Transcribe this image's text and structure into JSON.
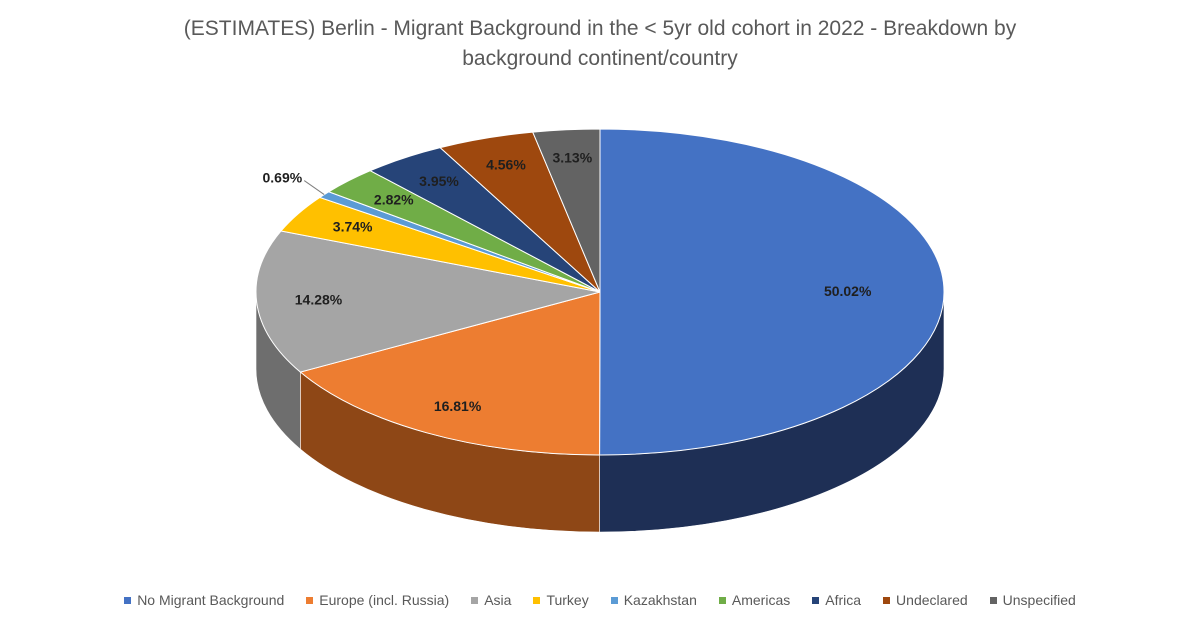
{
  "chart_data": {
    "type": "pie",
    "title": "(ESTIMATES) Berlin - Migrant Background in the < 5yr old cohort in 2022 - Breakdown by background continent/country",
    "title_lines": [
      "(ESTIMATES) Berlin - Migrant Background in the < 5yr old cohort in 2022 - Breakdown by",
      "background continent/country"
    ],
    "legend_position": "bottom",
    "slices": [
      {
        "label": "No Migrant Background",
        "value": 50.02,
        "value_label": "50.02%",
        "color": "#4472C4",
        "side": "#1E2F55"
      },
      {
        "label": "Europe (incl. Russia)",
        "value": 16.81,
        "value_label": "16.81%",
        "color": "#ED7D31",
        "side": "#8E4716"
      },
      {
        "label": "Asia",
        "value": 14.28,
        "value_label": "14.28%",
        "color": "#A5A5A5",
        "side": "#6E6E6E"
      },
      {
        "label": "Turkey",
        "value": 3.74,
        "value_label": "3.74%",
        "color": "#FFC000",
        "side": "#A67C00"
      },
      {
        "label": "Kazakhstan",
        "value": 0.69,
        "value_label": "0.69%",
        "color": "#5B9BD5",
        "side": "#2E5F8A"
      },
      {
        "label": "Americas",
        "value": 2.82,
        "value_label": "2.82%",
        "color": "#70AD47",
        "side": "#44702A"
      },
      {
        "label": "Africa",
        "value": 3.95,
        "value_label": "3.95%",
        "color": "#264478",
        "side": "#14243F"
      },
      {
        "label": "Undeclared",
        "value": 4.56,
        "value_label": "4.56%",
        "color": "#9E480E",
        "side": "#5E2A07"
      },
      {
        "label": "Unspecified",
        "value": 3.13,
        "value_label": "3.13%",
        "color": "#636363",
        "side": "#3A3A3A"
      }
    ]
  }
}
